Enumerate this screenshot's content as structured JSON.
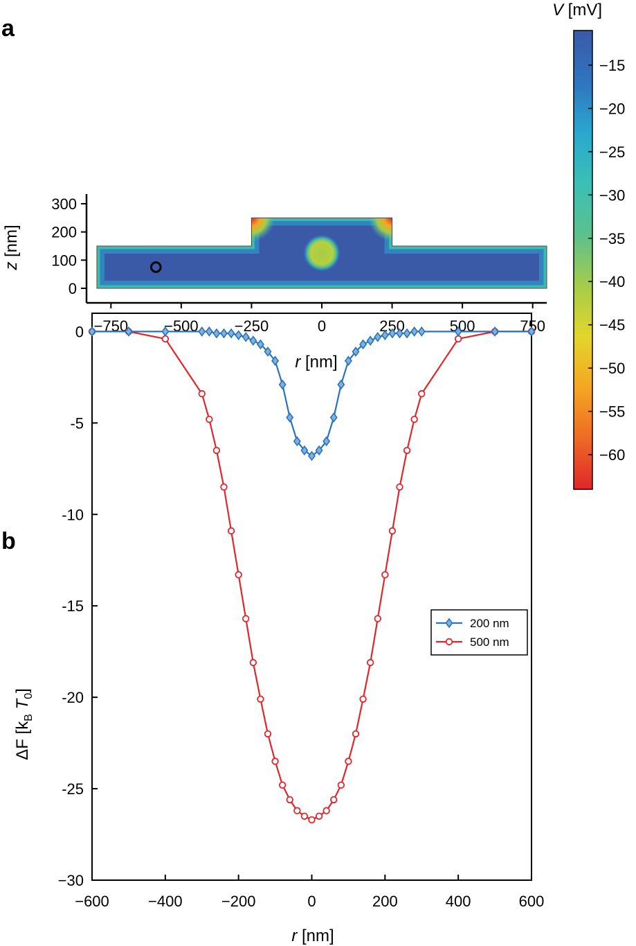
{
  "panel_a": {
    "label": "a",
    "colorbar": {
      "title_symbol": "V",
      "title_unit": " [mV]",
      "ticks": [
        "−15",
        "−20",
        "−25",
        "−30",
        "−35",
        "−40",
        "−45",
        "−50",
        "−55",
        "−60"
      ],
      "tick_values": [
        -15,
        -20,
        -25,
        -30,
        -35,
        -40,
        -45,
        -50,
        -55,
        -60
      ],
      "range": [
        -11,
        -64
      ],
      "colors": [
        "#3a5aa8",
        "#2f74be",
        "#2aa7cf",
        "#3bbfb5",
        "#5cc08e",
        "#a4cc4a",
        "#e3d52b",
        "#f5a623",
        "#ee6a25",
        "#e0262b"
      ]
    },
    "xlabel_symbol": "r",
    "xlabel_unit": " [nm]",
    "ylabel_symbol": "z",
    "ylabel_unit": " [nm]",
    "x_ticks": [
      "−750",
      "−500",
      "−250",
      "0",
      "250",
      "500",
      "750"
    ],
    "x_tick_values": [
      -750,
      -500,
      -250,
      0,
      250,
      500,
      750
    ],
    "y_ticks": [
      "0",
      "100",
      "200",
      "300"
    ],
    "y_tick_values": [
      0,
      100,
      200,
      300
    ],
    "xlim": [
      -800,
      800
    ],
    "ylim": [
      -50,
      330
    ],
    "domain": {
      "slab_thickness": 150,
      "raised_half_width": 250,
      "raised_height": 250
    },
    "particle_center": {
      "r": 0,
      "z": 125,
      "radius": 45,
      "potential": -42
    },
    "marker_circle": {
      "r": -590,
      "z": 75,
      "radius": 42
    },
    "background_potential": -14
  },
  "chart_data": {
    "type": "line",
    "panel_label": "b",
    "title": "",
    "xlabel_symbol": "r",
    "xlabel_unit": " [nm]",
    "ylabel_prefix": "ΔF [k",
    "ylabel_sub1": "B",
    "ylabel_mid": " T",
    "ylabel_sub2": "0",
    "ylabel_suffix": "]",
    "xlim": [
      -600,
      600
    ],
    "ylim": [
      -30,
      1
    ],
    "x_ticks": [
      "−600",
      "−400",
      "−200",
      "0",
      "200",
      "400",
      "600"
    ],
    "x_tick_values": [
      -600,
      -400,
      -200,
      0,
      200,
      400,
      600
    ],
    "y_ticks": [
      "0",
      "-5",
      "-10",
      "-15",
      "-20",
      "-25",
      "−30"
    ],
    "y_tick_values": [
      0,
      -5,
      -10,
      -15,
      -20,
      -25,
      -30
    ],
    "legend_position": "right",
    "series": [
      {
        "name": "200 nm",
        "color": "#2a73b8",
        "marker": "diamond",
        "x": [
          -600,
          -500,
          -400,
          -300,
          -280,
          -260,
          -240,
          -220,
          -200,
          -180,
          -160,
          -140,
          -120,
          -100,
          -80,
          -60,
          -40,
          -20,
          0,
          20,
          40,
          60,
          80,
          100,
          120,
          140,
          160,
          180,
          200,
          220,
          240,
          260,
          280,
          300,
          400,
          500,
          600
        ],
        "values": [
          0,
          0,
          0,
          0,
          0,
          -0.1,
          -0.1,
          -0.1,
          -0.2,
          -0.3,
          -0.5,
          -0.7,
          -1.1,
          -1.6,
          -2.9,
          -4.7,
          -6.0,
          -6.5,
          -6.8,
          -6.5,
          -6.0,
          -4.7,
          -2.9,
          -1.6,
          -1.1,
          -0.7,
          -0.5,
          -0.3,
          -0.2,
          -0.1,
          -0.1,
          -0.1,
          0,
          0,
          0,
          0,
          0
        ]
      },
      {
        "name": "500 nm",
        "color": "#e0262b",
        "marker": "circle",
        "x": [
          -600,
          -500,
          -400,
          -300,
          -280,
          -260,
          -240,
          -220,
          -200,
          -180,
          -160,
          -140,
          -120,
          -100,
          -80,
          -60,
          -40,
          -20,
          0,
          20,
          40,
          60,
          80,
          100,
          120,
          140,
          160,
          180,
          200,
          220,
          240,
          260,
          280,
          300,
          400,
          500,
          600
        ],
        "values": [
          0,
          0,
          -0.4,
          -3.4,
          -4.8,
          -6.5,
          -8.5,
          -10.9,
          -13.3,
          -15.7,
          -18.1,
          -20.1,
          -22.0,
          -23.5,
          -24.8,
          -25.6,
          -26.2,
          -26.5,
          -26.7,
          -26.5,
          -26.2,
          -25.6,
          -24.8,
          -23.5,
          -22.0,
          -20.1,
          -18.1,
          -15.7,
          -13.3,
          -10.9,
          -8.5,
          -6.5,
          -4.8,
          -3.4,
          -0.4,
          0,
          0
        ]
      }
    ]
  }
}
